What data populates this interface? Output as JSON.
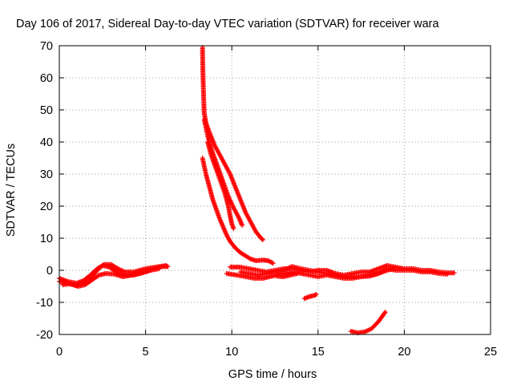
{
  "chart_data": {
    "type": "scatter",
    "title": "Day 106 of 2017, Sidereal Day-to-day VTEC variation (SDTVAR) for receiver wara",
    "xlabel": "GPS time / hours",
    "ylabel": "SDTVAR / TECUs",
    "xlim": [
      0,
      25
    ],
    "ylim": [
      -20,
      70
    ],
    "xticks": [
      0,
      5,
      10,
      15,
      20,
      25
    ],
    "yticks": [
      -20,
      -10,
      0,
      10,
      20,
      30,
      40,
      50,
      60,
      70
    ],
    "grid": true,
    "marker": "plus",
    "series": [
      {
        "name": "sdtvar",
        "color": "#ff0000",
        "tracks": [
          {
            "id": "early-1",
            "points": [
              [
                0,
                -3.5
              ],
              [
                0.5,
                -4
              ],
              [
                1,
                -4.8
              ],
              [
                1.4,
                -4
              ],
              [
                1.8,
                -2.5
              ],
              [
                2.2,
                0
              ],
              [
                2.5,
                1.5
              ],
              [
                2.9,
                1
              ],
              [
                3.3,
                -0.5
              ],
              [
                3.8,
                -1.5
              ],
              [
                4.3,
                -1.5
              ],
              [
                5,
                -0.5
              ],
              [
                5.5,
                0.5
              ],
              [
                6,
                1.2
              ],
              [
                6.3,
                1.2
              ]
            ]
          },
          {
            "id": "early-2",
            "points": [
              [
                0,
                -2.5
              ],
              [
                0.5,
                -3.5
              ],
              [
                1,
                -4
              ],
              [
                1.4,
                -3.2
              ],
              [
                1.8,
                -1.5
              ],
              [
                2.2,
                0.5
              ],
              [
                2.6,
                1.8
              ],
              [
                3,
                1.8
              ],
              [
                3.4,
                0.5
              ],
              [
                3.8,
                -0.5
              ],
              [
                4.3,
                -0.5
              ],
              [
                5,
                0.5
              ],
              [
                5.6,
                1
              ],
              [
                6.2,
                1.5
              ]
            ]
          },
          {
            "id": "early-3",
            "points": [
              [
                0.2,
                -4.5
              ],
              [
                0.6,
                -4.2
              ],
              [
                1.1,
                -5
              ],
              [
                1.5,
                -4.5
              ],
              [
                1.9,
                -3
              ],
              [
                2.3,
                -1.5
              ],
              [
                2.7,
                -1
              ],
              [
                3.2,
                -1.2
              ],
              [
                3.7,
                -2
              ],
              [
                4.2,
                -1.5
              ],
              [
                4.8,
                -0.8
              ],
              [
                5.3,
                0
              ],
              [
                5.8,
                0.5
              ]
            ]
          },
          {
            "id": "spike-1",
            "points": [
              [
                8.3,
                69.5
              ],
              [
                8.32,
                63
              ],
              [
                8.35,
                57
              ],
              [
                8.38,
                52
              ],
              [
                8.4,
                49
              ],
              [
                8.5,
                46
              ],
              [
                8.7,
                43
              ],
              [
                9,
                39
              ],
              [
                9.3,
                36
              ],
              [
                9.6,
                33
              ],
              [
                9.9,
                30
              ],
              [
                10.2,
                26
              ],
              [
                10.5,
                22
              ],
              [
                10.8,
                18
              ],
              [
                11.1,
                15
              ],
              [
                11.4,
                12
              ],
              [
                11.7,
                10
              ],
              [
                11.8,
                9.5
              ]
            ]
          },
          {
            "id": "spike-2",
            "points": [
              [
                8.4,
                47
              ],
              [
                8.6,
                42
              ],
              [
                8.8,
                38
              ],
              [
                9,
                35
              ],
              [
                9.2,
                32
              ],
              [
                9.4,
                29
              ],
              [
                9.6,
                26
              ],
              [
                9.8,
                23
              ],
              [
                10.1,
                19.5
              ],
              [
                10.4,
                16.5
              ],
              [
                10.6,
                14
              ]
            ]
          },
          {
            "id": "spike-3",
            "points": [
              [
                8.6,
                40
              ],
              [
                8.8,
                36
              ],
              [
                9,
                33
              ],
              [
                9.2,
                30
              ],
              [
                9.4,
                27
              ],
              [
                9.6,
                24
              ],
              [
                9.8,
                20
              ],
              [
                9.9,
                17
              ],
              [
                10,
                14.5
              ],
              [
                10.1,
                13
              ]
            ]
          },
          {
            "id": "spike-4",
            "points": [
              [
                8.3,
                35
              ],
              [
                8.5,
                30
              ],
              [
                8.7,
                26
              ],
              [
                8.9,
                22
              ],
              [
                9.1,
                19
              ],
              [
                9.3,
                16
              ],
              [
                9.5,
                13.5
              ],
              [
                9.7,
                11
              ],
              [
                9.9,
                9
              ],
              [
                10.2,
                7
              ],
              [
                10.5,
                5.5
              ],
              [
                10.8,
                4.5
              ],
              [
                11.1,
                3.5
              ],
              [
                11.4,
                3
              ],
              [
                11.8,
                3.2
              ],
              [
                12.1,
                3
              ],
              [
                12.4,
                2.2
              ]
            ]
          },
          {
            "id": "mid-1",
            "points": [
              [
                9.9,
                1
              ],
              [
                10.5,
                1
              ],
              [
                11,
                0.5
              ],
              [
                11.5,
                0
              ],
              [
                12,
                -0.5
              ],
              [
                12.5,
                0
              ],
              [
                13,
                0.5
              ],
              [
                13.5,
                0.5
              ],
              [
                14,
                0
              ],
              [
                14.5,
                -0.5
              ],
              [
                15,
                0
              ],
              [
                15.5,
                0
              ],
              [
                16,
                -1
              ],
              [
                16.5,
                -1.5
              ],
              [
                17,
                -1
              ],
              [
                17.5,
                -0.5
              ],
              [
                18,
                -0.5
              ],
              [
                18.5,
                0.5
              ],
              [
                19,
                1.5
              ],
              [
                19.5,
                1
              ],
              [
                20,
                0.5
              ],
              [
                20.5,
                0.5
              ],
              [
                21,
                0
              ],
              [
                21.5,
                0
              ],
              [
                22,
                -0.5
              ],
              [
                22.5,
                -0.8
              ],
              [
                22.9,
                -0.8
              ]
            ]
          },
          {
            "id": "mid-2",
            "points": [
              [
                9.7,
                -1
              ],
              [
                10.3,
                -1.5
              ],
              [
                10.8,
                -2
              ],
              [
                11.3,
                -2.5
              ],
              [
                11.8,
                -2.5
              ],
              [
                12.2,
                -2
              ],
              [
                12.6,
                -1.5
              ],
              [
                13,
                -1
              ],
              [
                13.5,
                -0.5
              ],
              [
                14,
                -1
              ],
              [
                14.5,
                -1.5
              ],
              [
                15,
                -2
              ],
              [
                15.5,
                -1.5
              ],
              [
                16,
                -2
              ],
              [
                16.5,
                -2.5
              ],
              [
                17,
                -2.5
              ],
              [
                17.5,
                -2
              ],
              [
                18,
                -1.5
              ],
              [
                18.5,
                -1
              ],
              [
                19,
                0
              ],
              [
                19.4,
                0.5
              ]
            ]
          },
          {
            "id": "mid-3",
            "points": [
              [
                10.5,
                -0.5
              ],
              [
                11,
                -1
              ],
              [
                11.5,
                -1.5
              ],
              [
                12,
                -1
              ],
              [
                12.5,
                -0.5
              ],
              [
                13,
                0
              ],
              [
                13.5,
                1.2
              ],
              [
                14,
                0.5
              ],
              [
                14.5,
                0
              ],
              [
                15,
                -0.5
              ],
              [
                15.5,
                -1
              ],
              [
                16,
                -1.5
              ],
              [
                16.5,
                -2
              ],
              [
                17,
                -2
              ],
              [
                17.5,
                -2
              ],
              [
                18,
                -1.8
              ],
              [
                18.5,
                -1
              ],
              [
                19,
                0.5
              ],
              [
                19.5,
                0
              ],
              [
                20,
                0
              ],
              [
                20.5,
                0
              ],
              [
                21,
                -0.5
              ],
              [
                21.5,
                -0.5
              ],
              [
                22,
                -1
              ],
              [
                22.5,
                -1.2
              ]
            ]
          },
          {
            "id": "mid-4",
            "points": [
              [
                12.6,
                -1.8
              ],
              [
                13,
                -2
              ],
              [
                13.4,
                -1.5
              ],
              [
                13.8,
                -1
              ]
            ]
          },
          {
            "id": "short-1",
            "points": [
              [
                14.2,
                -8.8
              ],
              [
                14.5,
                -8.2
              ],
              [
                14.8,
                -7.8
              ],
              [
                14.9,
                -7.5
              ]
            ]
          },
          {
            "id": "late-1",
            "points": [
              [
                16.9,
                -19
              ],
              [
                17.3,
                -19.5
              ],
              [
                17.7,
                -19.2
              ],
              [
                18.1,
                -18.2
              ],
              [
                18.5,
                -16
              ],
              [
                18.9,
                -13
              ]
            ]
          }
        ]
      }
    ]
  }
}
